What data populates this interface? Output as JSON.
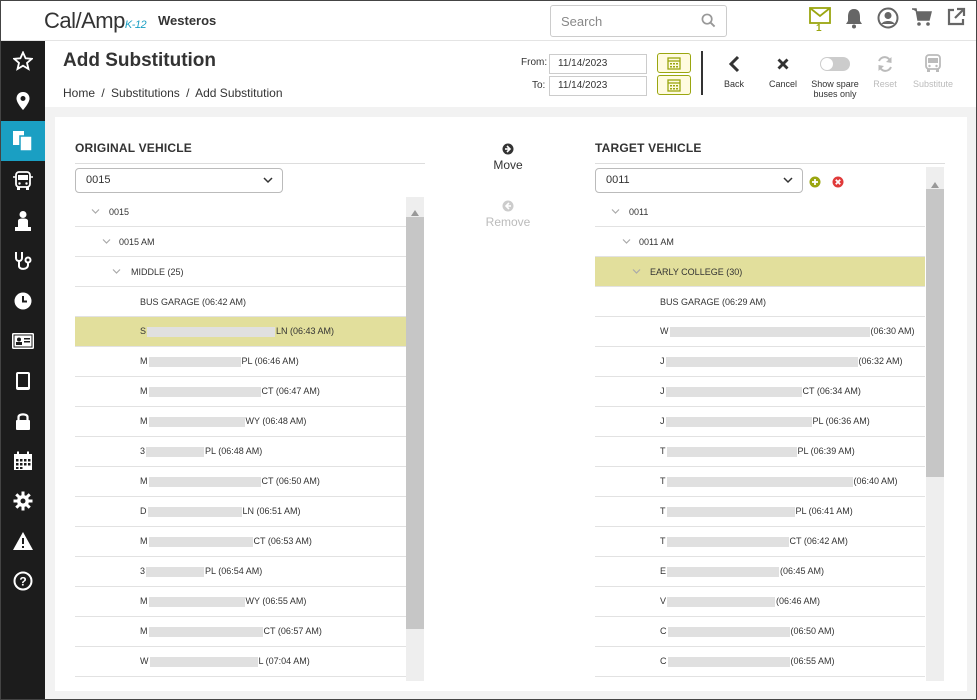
{
  "app": {
    "logo_main": "Cal/Amp",
    "logo_sub": "K-12",
    "tenant": "Westeros",
    "search_placeholder": "Search",
    "mail_count": "1"
  },
  "sidebar": {
    "items": [
      "favorites",
      "location",
      "substitution",
      "bus",
      "student",
      "health",
      "clock",
      "id-card",
      "tablet",
      "lock",
      "calendar",
      "settings",
      "alert",
      "help"
    ]
  },
  "header": {
    "title": "Add Substitution",
    "breadcrumbs": [
      "Home",
      "/",
      "Substitutions",
      "/",
      "Add Substitution"
    ],
    "from_label": "From:",
    "from_value": "11/14/2023",
    "to_label": "To:",
    "to_value": "11/14/2023",
    "tools": {
      "back": "Back",
      "cancel": "Cancel",
      "spare_line1": "Show spare",
      "spare_line2": "buses only",
      "reset": "Reset",
      "substitute": "Substitute"
    }
  },
  "original": {
    "title": "ORIGINAL VEHICLE",
    "selected": "0015",
    "tree_vehicle": "0015",
    "tree_run": "0015 AM",
    "tree_route": "MIDDLE (25)",
    "stops": [
      {
        "pre": "BUS GARAGE (06:42 AM)",
        "blur": 0,
        "post": ""
      },
      {
        "pre": "S",
        "blur": 128,
        "post": "LN (06:43 AM)"
      },
      {
        "pre": "M",
        "blur": 92,
        "post": "PL (06:46 AM)"
      },
      {
        "pre": "M",
        "blur": 112,
        "post": "CT (06:47 AM)"
      },
      {
        "pre": "M",
        "blur": 96,
        "post": "WY (06:48 AM)"
      },
      {
        "pre": "3",
        "blur": 58,
        "post": "PL (06:48 AM)"
      },
      {
        "pre": "M",
        "blur": 112,
        "post": "CT (06:50 AM)"
      },
      {
        "pre": "D",
        "blur": 94,
        "post": "LN (06:51 AM)"
      },
      {
        "pre": "M",
        "blur": 104,
        "post": "CT (06:53 AM)"
      },
      {
        "pre": "3",
        "blur": 58,
        "post": "PL (06:54 AM)"
      },
      {
        "pre": "M",
        "blur": 96,
        "post": "WY (06:55 AM)"
      },
      {
        "pre": "M",
        "blur": 114,
        "post": "CT (06:57 AM)"
      },
      {
        "pre": "W",
        "blur": 108,
        "post": "L (07:04 AM)"
      }
    ]
  },
  "middle": {
    "move": "Move",
    "remove": "Remove"
  },
  "target": {
    "title": "TARGET VEHICLE",
    "selected": "0011",
    "tree_vehicle": "0011",
    "tree_run": "0011 AM",
    "tree_route": "EARLY COLLEGE (30)",
    "stops": [
      {
        "pre": "BUS GARAGE (06:29 AM)",
        "blur": 0,
        "post": ""
      },
      {
        "pre": "W",
        "blur": 200,
        "post": "(06:30 AM)"
      },
      {
        "pre": "J",
        "blur": 192,
        "post": "(06:32 AM)"
      },
      {
        "pre": "J",
        "blur": 136,
        "post": "CT (06:34 AM)"
      },
      {
        "pre": "J",
        "blur": 146,
        "post": "PL (06:36 AM)"
      },
      {
        "pre": "T",
        "blur": 130,
        "post": "PL (06:39 AM)"
      },
      {
        "pre": "T",
        "blur": 186,
        "post": "(06:40 AM)"
      },
      {
        "pre": "T",
        "blur": 128,
        "post": "PL (06:41 AM)"
      },
      {
        "pre": "T",
        "blur": 122,
        "post": "CT (06:42 AM)"
      },
      {
        "pre": "E",
        "blur": 112,
        "post": "(06:45 AM)"
      },
      {
        "pre": "V",
        "blur": 108,
        "post": "(06:46 AM)"
      },
      {
        "pre": "C",
        "blur": 122,
        "post": "(06:50 AM)"
      },
      {
        "pre": "C",
        "blur": 122,
        "post": "(06:55 AM)"
      }
    ]
  },
  "colors": {
    "accent": "#1a9fc3",
    "highlight": "#e2df9c",
    "olive": "#9aa610"
  }
}
